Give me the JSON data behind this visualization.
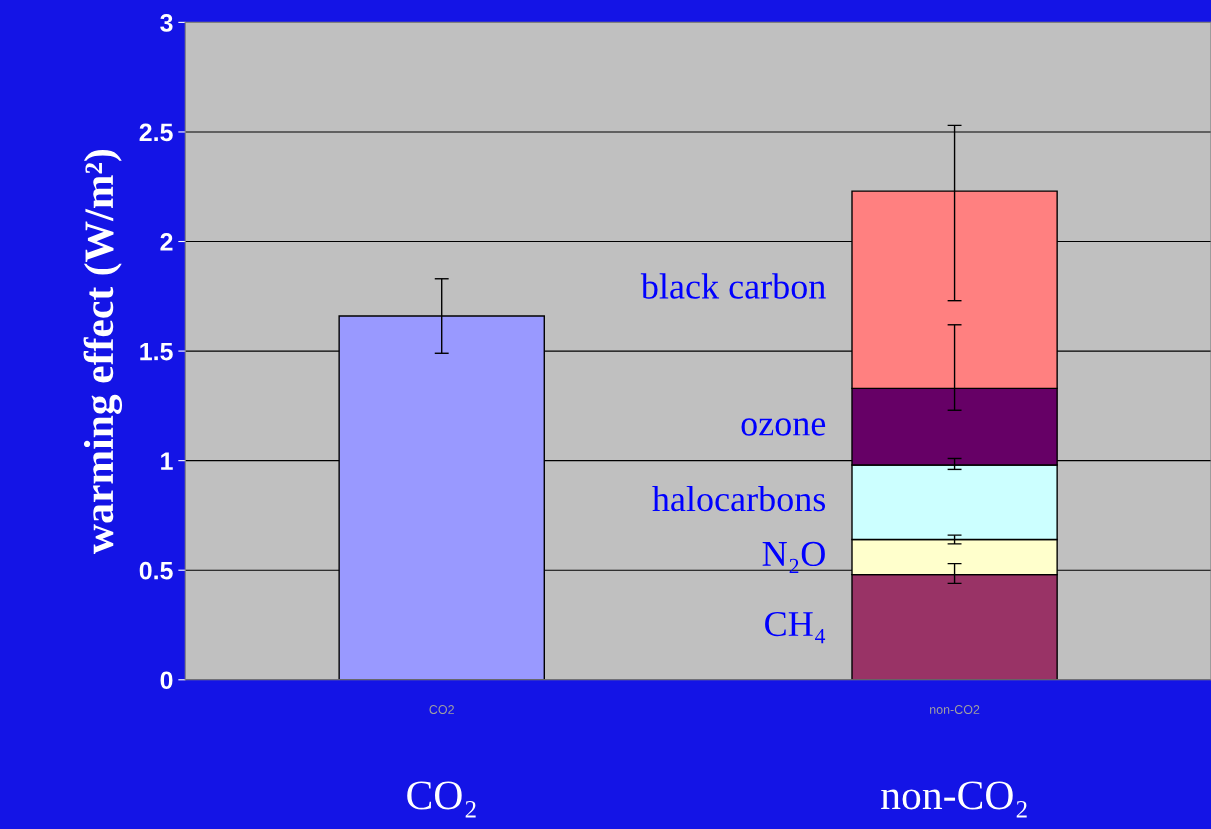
{
  "chart_data": {
    "type": "bar",
    "stacked": true,
    "ylabel": "warming effect (W/m²)",
    "categories": [
      "CO2",
      "non-CO2"
    ],
    "series": [
      {
        "color": "#9999ff",
        "values": [
          1.66,
          null
        ],
        "errors": [
          [
            1.49,
            1.83
          ],
          null
        ]
      },
      {
        "name": "CH₄",
        "color": "#993366",
        "values": [
          null,
          0.48
        ],
        "errors": [
          null,
          [
            0.44,
            0.53
          ]
        ]
      },
      {
        "name": "N₂O",
        "color": "#ffffcc",
        "values": [
          null,
          0.16
        ],
        "errors": [
          null,
          [
            0.62,
            0.66
          ]
        ]
      },
      {
        "name": "halocarbons",
        "color": "#ccffff",
        "values": [
          null,
          0.34
        ],
        "errors": [
          null,
          [
            0.96,
            1.01
          ]
        ]
      },
      {
        "name": "ozone",
        "color": "#660066",
        "values": [
          null,
          0.35
        ],
        "errors": [
          null,
          [
            1.23,
            1.62
          ]
        ]
      },
      {
        "name": "black carbon",
        "color": "#ff8080",
        "values": [
          null,
          0.9
        ],
        "errors": [
          null,
          [
            1.73,
            2.53
          ]
        ]
      }
    ],
    "ylim": [
      0,
      3
    ],
    "yticks": [
      0,
      0.5,
      1,
      1.5,
      2,
      2.5,
      3
    ],
    "grid": "y",
    "legend": false,
    "annotations": [
      "CO₂",
      "non-CO₂"
    ]
  }
}
